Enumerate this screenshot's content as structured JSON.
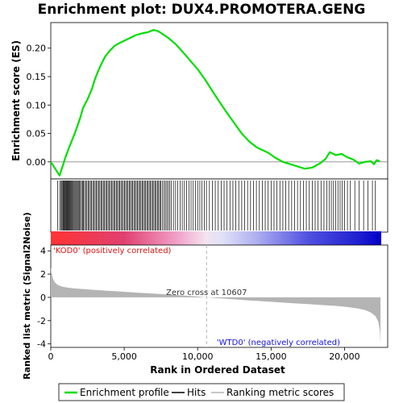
{
  "chart_data": {
    "type": "line",
    "title": "Enrichment plot: DUX4.PROMOTERA.GENG",
    "colors": {
      "es": "#00dd00",
      "hits": "#000000",
      "metric": "#b4b4b4",
      "pos_label": "#dd1111",
      "neg_label": "#1111dd",
      "zero_cross": "#b4b4b4"
    },
    "top_panel": {
      "ylabel": "Enrichment score (ES)",
      "xlim": [
        0,
        22500
      ],
      "ylim": [
        -0.03,
        0.245
      ],
      "yticks": [
        "0.00",
        "0.05",
        "0.10",
        "0.15",
        "0.20"
      ],
      "ytick_values": [
        0.0,
        0.05,
        0.1,
        0.15,
        0.2
      ],
      "series": [
        {
          "name": "Enrichment profile",
          "x": [
            0,
            300,
            600,
            800,
            1000,
            1200,
            1400,
            1600,
            1800,
            2000,
            2200,
            2500,
            2800,
            3000,
            3200,
            3400,
            3700,
            4000,
            4300,
            4600,
            5000,
            5400,
            5800,
            6200,
            6600,
            7000,
            7300,
            7600,
            8000,
            8500,
            9000,
            9500,
            10000,
            10500,
            11000,
            11500,
            12000,
            12500,
            13000,
            13500,
            14000,
            14300,
            14800,
            15300,
            15800,
            16300,
            16800,
            17300,
            17800,
            18300,
            18700,
            19000,
            19400,
            19800,
            20200,
            20600,
            21000,
            21400,
            21800,
            22000,
            22200,
            22400
          ],
          "y": [
            0.0,
            -0.012,
            -0.024,
            -0.008,
            0.008,
            0.022,
            0.035,
            0.048,
            0.062,
            0.077,
            0.095,
            0.11,
            0.128,
            0.145,
            0.158,
            0.17,
            0.185,
            0.195,
            0.203,
            0.208,
            0.213,
            0.218,
            0.223,
            0.226,
            0.228,
            0.232,
            0.23,
            0.225,
            0.218,
            0.207,
            0.193,
            0.178,
            0.163,
            0.145,
            0.125,
            0.105,
            0.086,
            0.068,
            0.05,
            0.036,
            0.026,
            0.022,
            0.016,
            0.007,
            0.0,
            -0.004,
            -0.008,
            -0.012,
            -0.01,
            -0.003,
            0.005,
            0.017,
            0.012,
            0.014,
            0.008,
            0.004,
            -0.003,
            0.0,
            0.001,
            -0.004,
            0.003,
            0.001
          ]
        }
      ]
    },
    "hits": {
      "name": "Hits",
      "positions": [
        470,
        610,
        700,
        760,
        820,
        870,
        910,
        960,
        1000,
        1050,
        1100,
        1150,
        1200,
        1250,
        1300,
        1350,
        1400,
        1460,
        1520,
        1580,
        1640,
        1700,
        1760,
        1820,
        1880,
        1950,
        2020,
        2090,
        2160,
        2230,
        2300,
        2380,
        2460,
        2540,
        2620,
        2700,
        2780,
        2860,
        2940,
        3020,
        3100,
        3180,
        3260,
        3340,
        3420,
        3500,
        3580,
        3660,
        3740,
        3820,
        3900,
        3980,
        4060,
        4140,
        4220,
        4300,
        4380,
        4460,
        4540,
        4620,
        4700,
        4780,
        4860,
        4940,
        5020,
        5100,
        5180,
        5260,
        5340,
        5420,
        5500,
        5580,
        5660,
        5740,
        5820,
        5900,
        5980,
        6060,
        6140,
        6220,
        6300,
        6380,
        6460,
        6540,
        6620,
        6700,
        6780,
        6860,
        6940,
        7020,
        7100,
        7180,
        7260,
        7340,
        7420,
        7500,
        7600,
        7700,
        7800,
        7900,
        8000,
        8100,
        8200,
        8350,
        8500,
        8650,
        8800,
        8950,
        9100,
        9250,
        9400,
        9550,
        9700,
        9850,
        10000,
        10150,
        10300,
        10450,
        10600,
        10800,
        11000,
        11200,
        11400,
        11600,
        11800,
        12000,
        12200,
        12400,
        12600,
        12800,
        13000,
        13200,
        13400,
        13600,
        13800,
        14000,
        14200,
        14400,
        14600,
        14800,
        15000,
        15200,
        15400,
        15600,
        15800,
        16000,
        16200,
        16400,
        16600,
        16800,
        17000,
        17200,
        17400,
        17600,
        17800,
        18000,
        18200,
        18400,
        18600,
        18800,
        18950,
        19100,
        19250,
        19400,
        19550,
        19700,
        19850,
        20000,
        20200,
        20400,
        20700,
        21000,
        21300,
        21600,
        21900,
        22100
      ]
    },
    "ranked_panel": {
      "ylabel": "Ranked list metric (Signal2Noise)",
      "xlabel": "Rank in Ordered Dataset",
      "xlim": [
        0,
        22500
      ],
      "ylim": [
        -4.3,
        4.5
      ],
      "yticks": [
        "-4",
        "-2",
        "0",
        "2",
        "4"
      ],
      "ytick_values": [
        -4,
        -2,
        0,
        2,
        4
      ],
      "xticks": [
        "0",
        "5,000",
        "10,000",
        "15,000",
        "20,000"
      ],
      "xtick_values": [
        0,
        5000,
        10000,
        15000,
        20000
      ],
      "series": [
        {
          "name": "Ranking metric scores",
          "x": [
            0,
            50,
            150,
            300,
            500,
            800,
            1200,
            1700,
            2300,
            3000,
            4000,
            5000,
            6000,
            7000,
            8000,
            9000,
            10000,
            10607,
            11500,
            12500,
            13500,
            14500,
            15500,
            16500,
            17500,
            18500,
            19500,
            20300,
            20900,
            21400,
            21800,
            22100,
            22300,
            22400,
            22450
          ],
          "y": [
            2.6,
            2.2,
            1.6,
            1.25,
            1.05,
            0.92,
            0.83,
            0.76,
            0.7,
            0.64,
            0.56,
            0.48,
            0.4,
            0.32,
            0.24,
            0.16,
            0.07,
            0.0,
            -0.08,
            -0.17,
            -0.26,
            -0.34,
            -0.42,
            -0.5,
            -0.58,
            -0.66,
            -0.74,
            -0.84,
            -0.95,
            -1.1,
            -1.3,
            -1.6,
            -2.1,
            -2.8,
            -4.0
          ]
        }
      ],
      "zero_cross_label": "Zero cross at 10607",
      "zero_cross_x": 10607,
      "positive_label": "'KOD0' (positively correlated)",
      "negative_label": "'WTD0' (negatively correlated)"
    },
    "legend": {
      "placement": "bottom",
      "entries": [
        {
          "label": "Enrichment profile"
        },
        {
          "label": "Hits"
        },
        {
          "label": "Ranking metric scores"
        }
      ]
    }
  }
}
